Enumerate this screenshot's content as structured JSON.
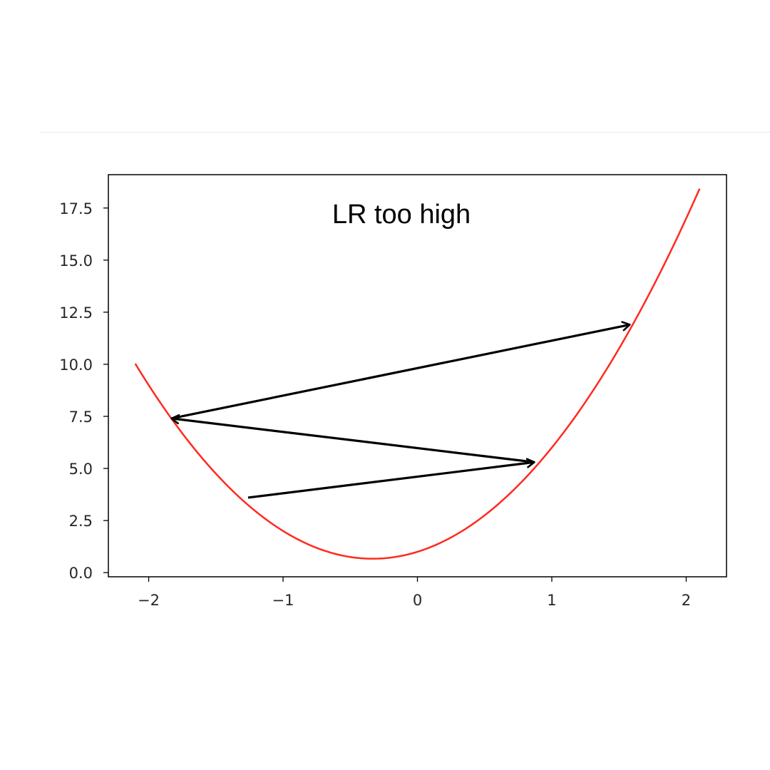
{
  "chart_data": {
    "type": "line",
    "title": "",
    "xlabel": "",
    "ylabel": "",
    "xlim": [
      -2.3,
      2.3
    ],
    "ylim": [
      -0.2,
      19.1
    ],
    "x_ticks": [
      -2,
      -1,
      0,
      1,
      2
    ],
    "x_tick_labels": [
      "−2",
      "−1",
      "0",
      "1",
      "2"
    ],
    "y_ticks": [
      0.0,
      2.5,
      5.0,
      7.5,
      10.0,
      12.5,
      15.0,
      17.5
    ],
    "y_tick_labels": [
      "0.0",
      "2.5",
      "5.0",
      "7.5",
      "10.0",
      "12.5",
      "15.0",
      "17.5"
    ],
    "grid": false,
    "curve": {
      "color": "#ff2a1f",
      "formula": "y = 3x^2 + 2x + 1",
      "x_range": [
        -2.1,
        2.1
      ]
    },
    "annotation": "LR too high",
    "steps_color": "#000000",
    "steps": [
      {
        "from": [
          -1.26,
          3.6
        ],
        "to": [
          0.87,
          5.3
        ]
      },
      {
        "from": [
          0.87,
          5.3
        ],
        "to": [
          -1.83,
          7.4
        ]
      },
      {
        "from": [
          -1.83,
          7.4
        ],
        "to": [
          1.58,
          11.9
        ]
      }
    ]
  }
}
